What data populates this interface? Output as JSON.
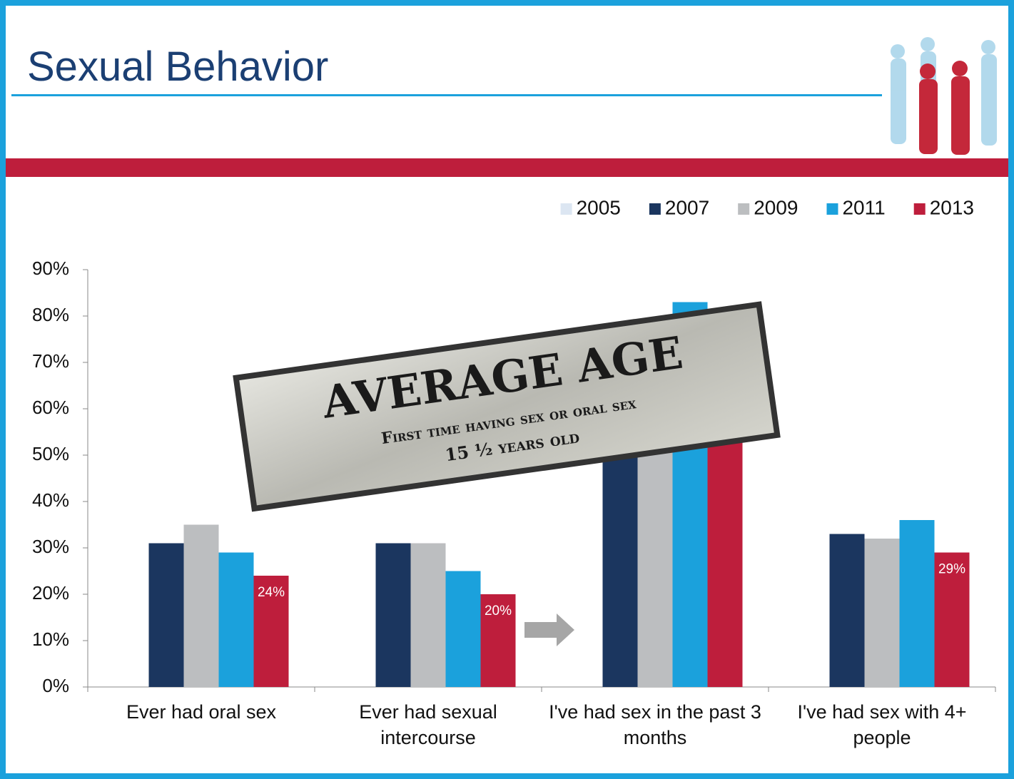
{
  "title": "Sexual Behavior",
  "chart_data": {
    "type": "bar",
    "categories": [
      "Ever had oral sex",
      "Ever had sexual intercourse",
      "I've had sex in the past 3 months",
      "I've had sex with 4+ people"
    ],
    "series": [
      {
        "name": "2005",
        "color": "#dce6f2",
        "values": [
          null,
          null,
          null,
          null
        ]
      },
      {
        "name": "2007",
        "color": "#1b365f",
        "values": [
          31,
          31,
          65,
          33
        ]
      },
      {
        "name": "2009",
        "color": "#bcbec0",
        "values": [
          35,
          31,
          68,
          32
        ]
      },
      {
        "name": "2011",
        "color": "#1ba1dc",
        "values": [
          29,
          25,
          83,
          36
        ]
      },
      {
        "name": "2013",
        "color": "#be1e3c",
        "values": [
          24,
          20,
          62,
          29
        ],
        "value_labels": [
          "24%",
          "20%",
          null,
          "29%"
        ]
      }
    ],
    "ylim": [
      0,
      90
    ],
    "yticks": [
      {
        "value": 0,
        "label": "0%"
      },
      {
        "value": 10,
        "label": "10%"
      },
      {
        "value": 20,
        "label": "20%"
      },
      {
        "value": 30,
        "label": "30%"
      },
      {
        "value": 40,
        "label": "40%"
      },
      {
        "value": 50,
        "label": "50%"
      },
      {
        "value": 60,
        "label": "60%"
      },
      {
        "value": 70,
        "label": "70%"
      },
      {
        "value": 80,
        "label": "80%"
      },
      {
        "value": 90,
        "label": "90%"
      }
    ],
    "legend": "top-right",
    "annotations": [
      "AVERAGE AGE",
      "First time having sex or oral sex",
      "15 ½ years old"
    ]
  }
}
